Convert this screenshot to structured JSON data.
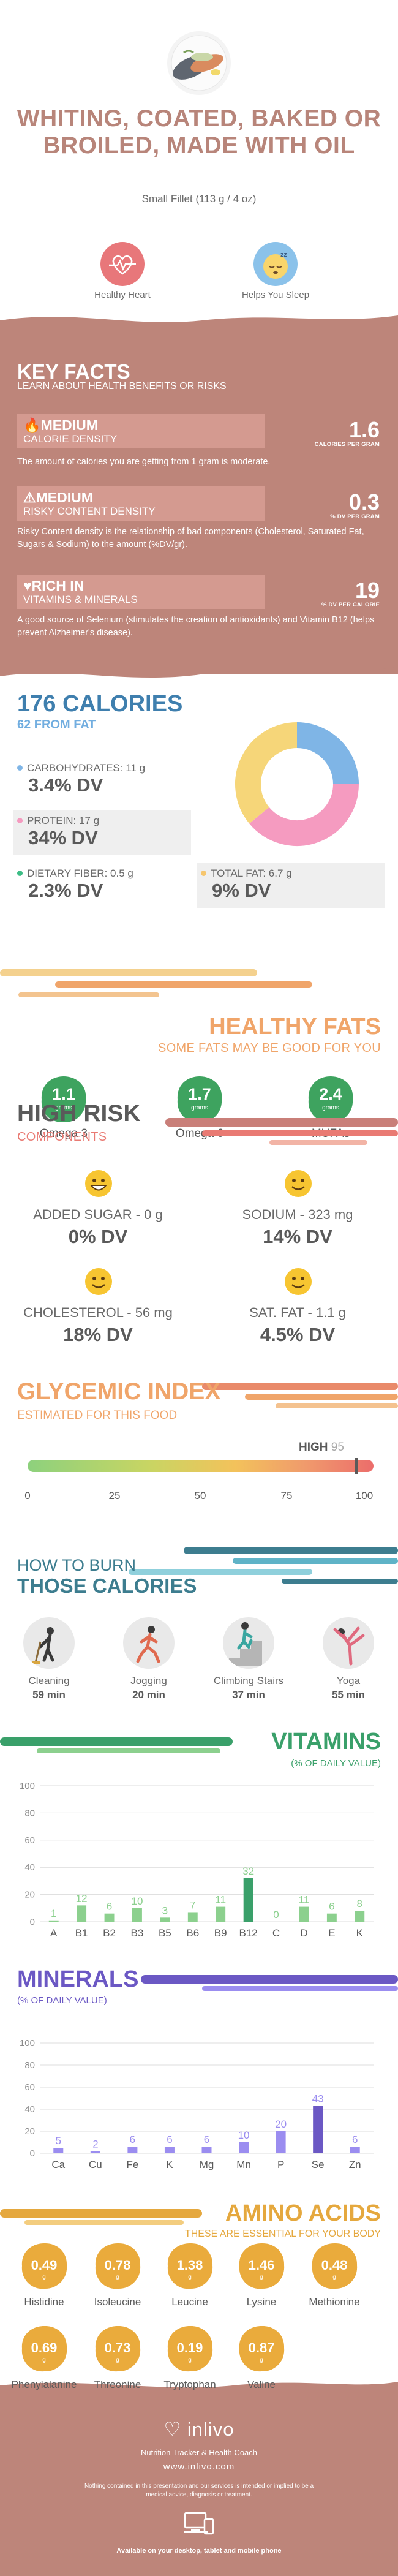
{
  "header": {
    "title": "WHITING, COATED, BAKED OR BROILED, MADE WITH OIL",
    "serving": "Small Fillet (113 g / 4 oz)",
    "badges": [
      {
        "label": "Healthy Heart",
        "icon": "heart-pulse-icon"
      },
      {
        "label": "Helps You Sleep",
        "icon": "sleeping-face-icon"
      }
    ]
  },
  "key_facts": {
    "title": "KEY FACTS",
    "subtitle": "LEARN ABOUT HEALTH BENEFITS OR RISKS",
    "items": [
      {
        "level": "MEDIUM",
        "name": "CALORIE DENSITY",
        "value": "1.6",
        "unit": "CALORIES PER GRAM",
        "description": "The amount of calories you are getting from 1 gram is moderate.",
        "icon": "flame-icon"
      },
      {
        "level": "MEDIUM",
        "name": "RISKY CONTENT DENSITY",
        "value": "0.3",
        "unit": "% DV PER GRAM",
        "description": "Risky Content density is the relationship of bad components (Cholesterol, Saturated Fat, Sugars & Sodium) to the amount (%DV/gr).",
        "icon": "warning-icon"
      },
      {
        "level": "RICH  IN",
        "name": "VITAMINS & MINERALS",
        "value": "19",
        "unit": "% DV PER CALORIE",
        "description": "A good source of Selenium (stimulates the creation of antioxidants) and Vitamin B12 (helps prevent Alzheimer's disease).",
        "icon": "heart-icon"
      }
    ]
  },
  "calories": {
    "title": "176 CALORIES",
    "from_fat": "62 FROM FAT",
    "nutrients": [
      {
        "label": "CARBOHYDRATES: 11 g",
        "dv": "3.4% DV",
        "color": "#7fb5e6"
      },
      {
        "label": "PROTEIN: 17 g",
        "dv": "34% DV",
        "color": "#f59bc0"
      },
      {
        "label": "DIETARY FIBER: 0.5 g",
        "dv": "2.3% DV",
        "color": "#3dbd86"
      },
      {
        "label": "TOTAL FAT: 6.7 g",
        "dv": "9% DV",
        "color": "#f6c66e"
      }
    ],
    "donut": [
      {
        "name": "carbohydrates",
        "value": 25,
        "color": "#7fb5e6"
      },
      {
        "name": "protein",
        "value": 39,
        "color": "#f59bc0"
      },
      {
        "name": "fat",
        "value": 36,
        "color": "#f6d679"
      }
    ]
  },
  "healthy_fats": {
    "title": "HEALTHY FATS",
    "subtitle": "SOME FATS MAY BE GOOD FOR YOU",
    "items": [
      {
        "value": "1.1",
        "unit": "grams",
        "label": "Omega 3"
      },
      {
        "value": "1.7",
        "unit": "grams",
        "label": "Omega 6"
      },
      {
        "value": "2.4",
        "unit": "grams",
        "label": "MUFAs"
      }
    ]
  },
  "high_risk": {
    "title": "HIGH RISK",
    "subtitle": "COMPONENTS",
    "items": [
      {
        "label": "ADDED SUGAR - 0 g",
        "dv": "0% DV",
        "icon": "grinning-face-icon"
      },
      {
        "label": "SODIUM - 323 mg",
        "dv": "14% DV",
        "icon": "smiling-face-icon"
      },
      {
        "label": "CHOLESTEROL - 56 mg",
        "dv": "18% DV",
        "icon": "smiling-face-icon"
      },
      {
        "label": "SAT. FAT - 1.1 g",
        "dv": "4.5% DV",
        "icon": "smiling-face-icon"
      }
    ]
  },
  "glycemic": {
    "title": "GLYCEMIC INDEX",
    "subtitle": "ESTIMATED FOR THIS FOOD",
    "level": "HIGH",
    "value": 95,
    "ticks": [
      "0",
      "25",
      "50",
      "75",
      "100"
    ]
  },
  "burn": {
    "title_line1": "HOW TO BURN",
    "title_line2": "THOSE CALORIES",
    "activities": [
      {
        "name": "Cleaning",
        "minutes": "59 min",
        "icon": "cleaning-person-icon"
      },
      {
        "name": "Jogging",
        "minutes": "20 min",
        "icon": "jogging-person-icon"
      },
      {
        "name": "Climbing Stairs",
        "minutes": "37 min",
        "icon": "stairs-climber-icon"
      },
      {
        "name": "Yoga",
        "minutes": "55 min",
        "icon": "yoga-pose-icon"
      }
    ]
  },
  "vitamins": {
    "title": "VITAMINS",
    "subtitle": "(% OF DAILY VALUE)"
  },
  "minerals": {
    "title": "MINERALS",
    "subtitle": "(% OF DAILY VALUE)"
  },
  "chart_data": [
    {
      "type": "bar",
      "title": "VITAMINS",
      "ylabel": "(% OF DAILY VALUE)",
      "categories": [
        "A",
        "B1",
        "B2",
        "B3",
        "B5",
        "B6",
        "B9",
        "B12",
        "C",
        "D",
        "E",
        "K"
      ],
      "values": [
        1,
        12,
        6,
        10,
        3,
        7,
        11,
        32,
        0,
        11,
        6,
        8
      ],
      "ylim": [
        0,
        100
      ],
      "yticks": [
        0,
        20,
        40,
        60,
        80,
        100
      ],
      "grid": true,
      "color": "#8cd08e",
      "highlight_color": "#3aa06a"
    },
    {
      "type": "bar",
      "title": "MINERALS",
      "ylabel": "(% OF DAILY VALUE)",
      "categories": [
        "Ca",
        "Cu",
        "Fe",
        "K",
        "Mg",
        "Mn",
        "P",
        "Se",
        "Zn"
      ],
      "values": [
        5,
        2,
        6,
        6,
        6,
        10,
        20,
        43,
        6
      ],
      "ylim": [
        0,
        100
      ],
      "yticks": [
        0,
        20,
        40,
        60,
        80,
        100
      ],
      "grid": true,
      "color": "#9b8df0",
      "highlight_color": "#6b58c4"
    }
  ],
  "amino_acids": {
    "title": "AMINO ACIDS",
    "subtitle": "THESE ARE ESSENTIAL FOR YOUR BODY",
    "unit": "g",
    "items": [
      {
        "value": "0.49",
        "label": "Histidine"
      },
      {
        "value": "0.78",
        "label": "Isoleucine"
      },
      {
        "value": "1.38",
        "label": "Leucine"
      },
      {
        "value": "1.46",
        "label": "Lysine"
      },
      {
        "value": "0.48",
        "label": "Methionine"
      },
      {
        "value": "0.69",
        "label": "Phenylalanine"
      },
      {
        "value": "0.73",
        "label": "Threonine"
      },
      {
        "value": "0.19",
        "label": "Tryptophan"
      },
      {
        "value": "0.87",
        "label": "Valine"
      }
    ]
  },
  "footer": {
    "brand": "inlivo",
    "tagline": "Nutrition Tracker & Health Coach",
    "url": "www.inlivo.com",
    "disclaimer": "Nothing contained in this presentation and our services is intended or implied to be a medical advice, diagnosis or treatment.",
    "availability": "Available on your desktop, tablet and mobile phone"
  },
  "colors": {
    "accent": "#bd857a",
    "calories": "#3f7fae",
    "fats": "#f0a56a",
    "vitamins": "#3aa06a",
    "minerals": "#6b58c4",
    "amino": "#e5a83e"
  }
}
